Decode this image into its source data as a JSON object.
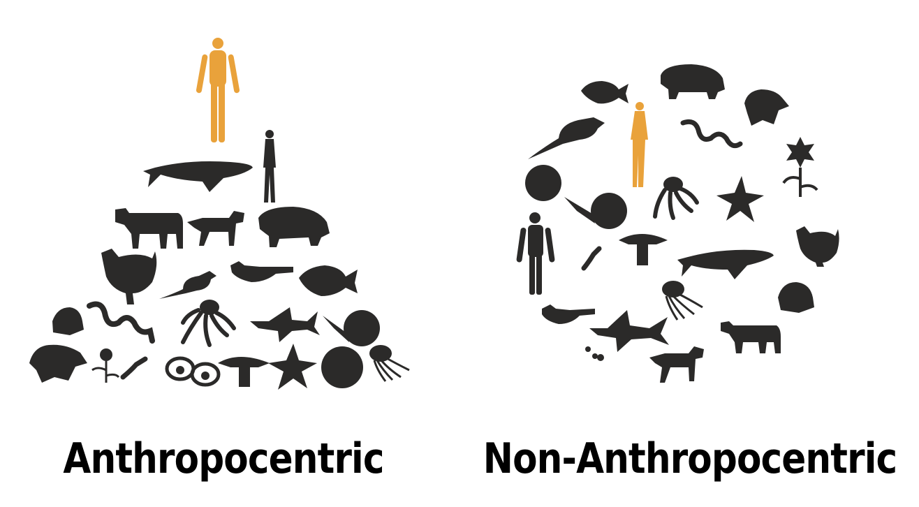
{
  "panels": {
    "left": {
      "caption": "Anthropocentric"
    },
    "right": {
      "caption": "Non-Anthropocentric"
    }
  },
  "colors": {
    "silhouette": "#2b2a29",
    "human_highlight": "#e9a23b",
    "background": "#ffffff"
  },
  "icons": {
    "left": [
      "human-highlight-icon",
      "woman-icon",
      "whale-icon",
      "cow-icon",
      "dog-icon",
      "pig-icon",
      "chicken-icon",
      "rat-icon",
      "bird-icon",
      "fish-icon",
      "frog-icon",
      "snake-icon",
      "octopus-icon",
      "shark-icon",
      "snail-icon",
      "turtle-icon",
      "flower-icon",
      "worm-icon",
      "eggs-icon",
      "mushroom-icon",
      "starfish-icon",
      "sphere-icon",
      "jellyfish-icon"
    ],
    "right": [
      "fish-icon",
      "pig-icon",
      "turtle-icon",
      "rat-icon",
      "human-highlight-icon",
      "snake-icon",
      "flower-icon",
      "sphere-icon",
      "snail-icon",
      "octopus-icon",
      "starfish-icon",
      "man-icon",
      "mushroom-icon",
      "whale-icon",
      "chicken-icon",
      "worm-icon",
      "jellyfish-icon",
      "frog-icon",
      "bird-icon",
      "shark-icon",
      "cow-icon",
      "dog-icon",
      "eggs-icon"
    ]
  }
}
